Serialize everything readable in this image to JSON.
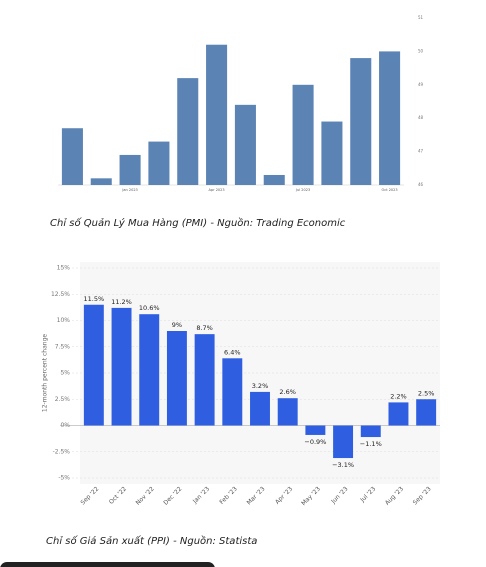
{
  "chart_data": [
    {
      "type": "bar",
      "caption": "Chỉ số Quản Lý Mua Hàng (PMI) - Nguồn: Trading Economic",
      "categories": [
        null,
        null,
        "Jan 2023",
        null,
        null,
        "Apr 2023",
        null,
        null,
        "Jul 2023",
        null,
        null,
        "Oct 2023"
      ],
      "values": [
        47.7,
        46.2,
        46.9,
        47.3,
        49.2,
        50.2,
        48.4,
        46.3,
        49.0,
        47.9,
        49.8,
        50.0
      ],
      "color": "#5b84b4",
      "ylim": [
        46,
        51
      ],
      "yticks": [
        46,
        47,
        48,
        49,
        50,
        51
      ],
      "grid": false
    },
    {
      "type": "bar",
      "caption": "Chỉ số Giá Sản xuất (PPI) - Nguồn: Statista",
      "y_label": "12-month percent change",
      "categories": [
        "Sep '22",
        "Oct '22",
        "Nov '22",
        "Dec '22",
        "Jan '23",
        "Feb '23",
        "Mar '23",
        "Apr '23",
        "May '23",
        "Jun '23",
        "Jul '23",
        "Aug '23",
        "Sep '23"
      ],
      "values": [
        11.5,
        11.2,
        10.6,
        9,
        8.7,
        6.4,
        3.2,
        2.6,
        -0.9,
        -3.1,
        -1.1,
        2.2,
        2.5
      ],
      "value_labels": [
        "11.5%",
        "11.2%",
        "10.6%",
        "9%",
        "8.7%",
        "6.4%",
        "3.2%",
        "2.6%",
        "−0.9%",
        "−3.1%",
        "−1.1%",
        "2.2%",
        "2.5%"
      ],
      "color": "#2f5fe0",
      "ylim": [
        -5,
        15
      ],
      "yticks": [
        {
          "value": -5,
          "label": "-5%"
        },
        {
          "value": -2.5,
          "label": "-2.5%"
        },
        {
          "value": 0,
          "label": "0%"
        },
        {
          "value": 2.5,
          "label": "2.5%"
        },
        {
          "value": 5,
          "label": "5%"
        },
        {
          "value": 7.5,
          "label": "7.5%"
        },
        {
          "value": 10,
          "label": "10%"
        },
        {
          "value": 12.5,
          "label": "12.5%"
        },
        {
          "value": 15,
          "label": "15%"
        }
      ],
      "grid": true
    }
  ]
}
